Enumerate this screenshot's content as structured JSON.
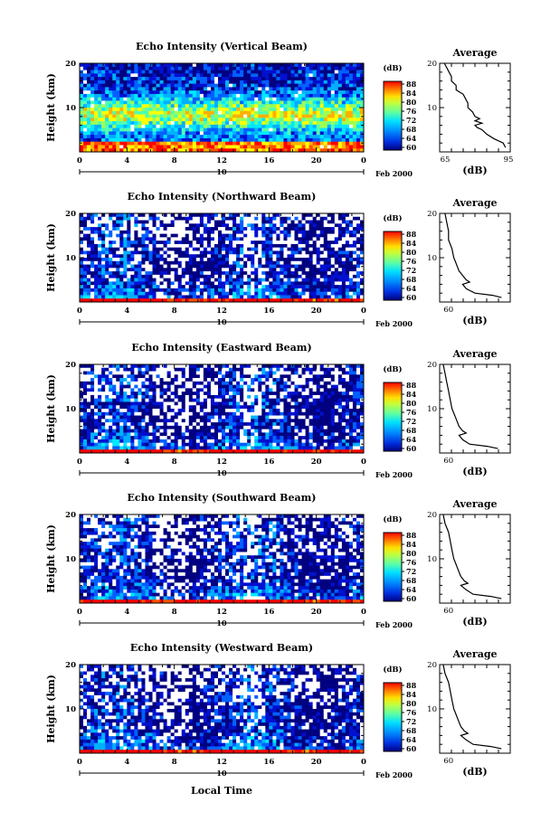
{
  "chart_data": {
    "type": "heatmap",
    "xlabel": "Local Time",
    "date_marker": "10",
    "date_suffix": "Feb 2000",
    "colorbar": {
      "label": "(dB)",
      "ticks": [
        "88",
        "84",
        "80",
        "76",
        "72",
        "68",
        "64",
        "60"
      ],
      "range": [
        60,
        90
      ],
      "colors": [
        "#000080",
        "#0010d0",
        "#0060ff",
        "#00b0ff",
        "#00e8ff",
        "#50ffb0",
        "#a0ff50",
        "#ffff00",
        "#ffb000",
        "#ff5000",
        "#ff0000"
      ]
    },
    "panels": [
      {
        "title": "Echo Intensity (Vertical Beam)",
        "ylabel": "Height (km)",
        "x_ticks": [
          "0",
          "4",
          "8",
          "12",
          "16",
          "20",
          "0"
        ],
        "y_ticks": [
          "20",
          "10"
        ],
        "avg_title": "Average",
        "avg_xlabel": "(dB)",
        "avg_xticks": [
          "65",
          "95"
        ],
        "avg_yticks": [
          "20",
          "10"
        ],
        "avg_xlim": [
          65,
          95
        ],
        "avg_profile": [
          [
            1,
            93
          ],
          [
            2,
            92
          ],
          [
            3,
            88
          ],
          [
            4,
            85
          ],
          [
            5,
            83
          ],
          [
            5.5,
            81
          ],
          [
            6,
            80
          ],
          [
            6.5,
            83
          ],
          [
            7,
            80
          ],
          [
            7.5,
            82
          ],
          [
            8,
            80
          ],
          [
            9,
            79
          ],
          [
            10,
            77
          ],
          [
            11,
            77
          ],
          [
            12,
            76
          ],
          [
            13,
            75
          ],
          [
            14,
            72
          ],
          [
            15,
            72
          ],
          [
            16,
            70
          ],
          [
            17,
            70
          ],
          [
            18,
            69
          ],
          [
            19,
            68
          ],
          [
            20,
            67
          ]
        ]
      },
      {
        "title": "Echo Intensity (Northward Beam)",
        "ylabel": "Height (km)",
        "x_ticks": [
          "0",
          "4",
          "8",
          "12",
          "16",
          "20",
          "0"
        ],
        "y_ticks": [
          "20",
          "10"
        ],
        "avg_title": "Average",
        "avg_xlabel": "(dB)",
        "avg_xticks": [
          "60"
        ],
        "avg_yticks": [
          "20",
          "10"
        ],
        "avg_xlim": [
          55,
          95
        ],
        "avg_profile": [
          [
            1,
            90
          ],
          [
            1.5,
            85
          ],
          [
            2,
            75
          ],
          [
            3,
            70
          ],
          [
            4,
            68
          ],
          [
            4.5,
            72
          ],
          [
            5,
            70
          ],
          [
            6,
            68
          ],
          [
            7,
            66
          ],
          [
            8,
            65
          ],
          [
            9,
            64
          ],
          [
            10,
            63
          ],
          [
            12,
            62
          ],
          [
            14,
            60
          ],
          [
            16,
            60
          ],
          [
            18,
            59
          ],
          [
            20,
            58
          ]
        ]
      },
      {
        "title": "Echo Intensity (Eastward Beam)",
        "ylabel": "Height (km)",
        "x_ticks": [
          "0",
          "4",
          "8",
          "12",
          "16",
          "20",
          "0"
        ],
        "y_ticks": [
          "20",
          "10"
        ],
        "avg_title": "Average",
        "avg_xlabel": "(dB)",
        "avg_xticks": [
          "60"
        ],
        "avg_yticks": [
          "20",
          "10"
        ],
        "avg_xlim": [
          55,
          95
        ],
        "avg_profile": [
          [
            1,
            88
          ],
          [
            1.5,
            82
          ],
          [
            2,
            72
          ],
          [
            3,
            68
          ],
          [
            4,
            66
          ],
          [
            4.5,
            70
          ],
          [
            5,
            68
          ],
          [
            6,
            66
          ],
          [
            7,
            65
          ],
          [
            8,
            64
          ],
          [
            9,
            63
          ],
          [
            10,
            62
          ],
          [
            12,
            61
          ],
          [
            14,
            60
          ],
          [
            16,
            59
          ],
          [
            18,
            58
          ],
          [
            20,
            57
          ]
        ]
      },
      {
        "title": "Echo Intensity (Southward Beam)",
        "ylabel": "Height (km)",
        "x_ticks": [
          "0",
          "4",
          "8",
          "12",
          "16",
          "20",
          "0"
        ],
        "y_ticks": [
          "20",
          "10"
        ],
        "avg_title": "Average",
        "avg_xlabel": "(dB)",
        "avg_xticks": [
          "60"
        ],
        "avg_yticks": [
          "20",
          "10"
        ],
        "avg_xlim": [
          55,
          95
        ],
        "avg_profile": [
          [
            1,
            90
          ],
          [
            1.5,
            84
          ],
          [
            2,
            74
          ],
          [
            3,
            70
          ],
          [
            4,
            67
          ],
          [
            4.5,
            71
          ],
          [
            5,
            69
          ],
          [
            6,
            67
          ],
          [
            7,
            66
          ],
          [
            8,
            65
          ],
          [
            9,
            64
          ],
          [
            10,
            63
          ],
          [
            12,
            62
          ],
          [
            14,
            61
          ],
          [
            16,
            60
          ],
          [
            18,
            58
          ],
          [
            20,
            57
          ]
        ]
      },
      {
        "title": "Echo Intensity (Westward Beam)",
        "ylabel": "Height (km)",
        "x_ticks": [
          "0",
          "4",
          "8",
          "12",
          "16",
          "20",
          "0"
        ],
        "y_ticks": [
          "20",
          "10"
        ],
        "avg_title": "Average",
        "avg_xlabel": "(dB)",
        "avg_xticks": [
          "60"
        ],
        "avg_yticks": [
          "20",
          "10"
        ],
        "avg_xlim": [
          55,
          95
        ],
        "avg_profile": [
          [
            1,
            90
          ],
          [
            1.5,
            84
          ],
          [
            2,
            74
          ],
          [
            3,
            70
          ],
          [
            4,
            67
          ],
          [
            4.5,
            71
          ],
          [
            5,
            69
          ],
          [
            6,
            67
          ],
          [
            7,
            66
          ],
          [
            8,
            65
          ],
          [
            9,
            64
          ],
          [
            10,
            63
          ],
          [
            12,
            62
          ],
          [
            14,
            61
          ],
          [
            16,
            60
          ],
          [
            18,
            58
          ],
          [
            20,
            57
          ]
        ]
      }
    ]
  }
}
